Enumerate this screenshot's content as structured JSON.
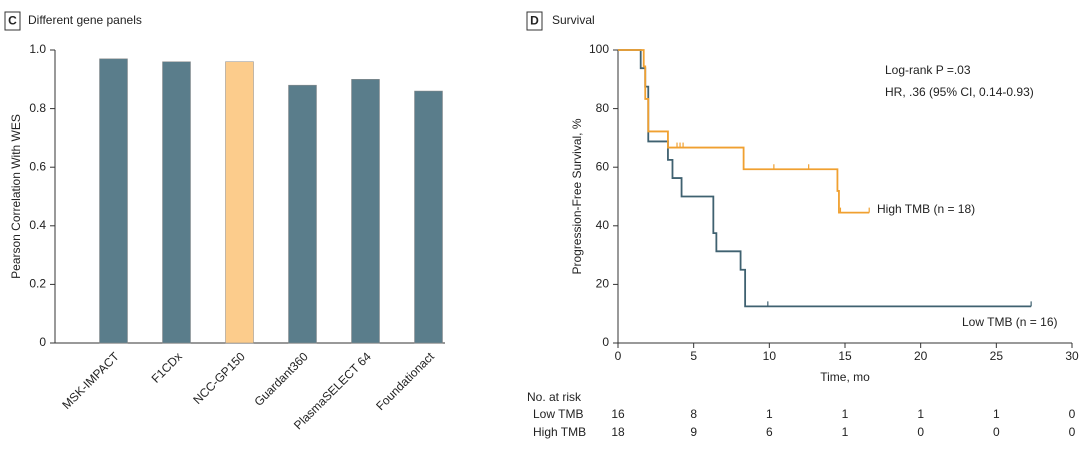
{
  "chart_data": [
    {
      "type": "bar",
      "panel": "C",
      "title": "Different gene panels",
      "ylabel": "Pearson Correlation With WES",
      "categories": [
        "MSK-IMPACT",
        "F1CDx",
        "NCC-GP150",
        "Guardant360",
        "PlasmaSELECT 64",
        "Foundationact"
      ],
      "values": [
        0.97,
        0.96,
        0.96,
        0.88,
        0.9,
        0.86
      ],
      "colors": [
        "#5a7d8b",
        "#5a7d8b",
        "#fccc8c",
        "#5a7d8b",
        "#5a7d8b",
        "#5a7d8b"
      ],
      "ylim": [
        0,
        1
      ],
      "yticks": [
        0,
        0.2,
        0.4,
        0.6,
        0.8,
        {
          "value": 1,
          "label": "1.0"
        }
      ]
    },
    {
      "type": "step",
      "panel": "D",
      "title": "Survival",
      "xlabel": "Time, mo",
      "ylabel": "Progression-Free Survival, %",
      "xlim": [
        0,
        30
      ],
      "ylim": [
        0,
        100
      ],
      "xticks": [
        0,
        5,
        10,
        15,
        20,
        25,
        30
      ],
      "yticks": [
        0,
        20,
        40,
        60,
        80,
        100
      ],
      "annotations": [
        "Log-rank P =.03",
        "HR, .36 (95% CI, 0.14-0.93)"
      ],
      "series": [
        {
          "name": "Low TMB",
          "end_label": "Low TMB (n = 16)",
          "color": "#3f6170",
          "x": [
            0,
            1.5,
            1.8,
            2.0,
            3.3,
            3.6,
            4.2,
            6.3,
            6.5,
            8.1,
            8.4,
            27.3
          ],
          "values": [
            100,
            93.8,
            87.5,
            68.8,
            62.5,
            56.3,
            50,
            37.5,
            31.3,
            25,
            12.5,
            12.5
          ],
          "censor_x": [
            9.9,
            27.3
          ]
        },
        {
          "name": "High TMB",
          "end_label": "High TMB (n = 18)",
          "color": "#f0a030",
          "x": [
            0,
            1.7,
            1.8,
            2.0,
            3.3,
            8.3,
            14.5,
            14.6,
            16.6
          ],
          "values": [
            100,
            94.4,
            83.3,
            72.2,
            66.7,
            59.3,
            51.9,
            44.5,
            44.5
          ],
          "censor_x": [
            3.9,
            4.1,
            4.3,
            8.3,
            10.3,
            12.6,
            14.7,
            16.6
          ]
        }
      ],
      "risk_table": {
        "title": "No. at risk",
        "rows": [
          [
            16,
            8,
            1,
            1,
            1,
            1,
            0
          ],
          [
            18,
            9,
            6,
            1,
            0,
            0,
            0
          ]
        ]
      }
    }
  ]
}
